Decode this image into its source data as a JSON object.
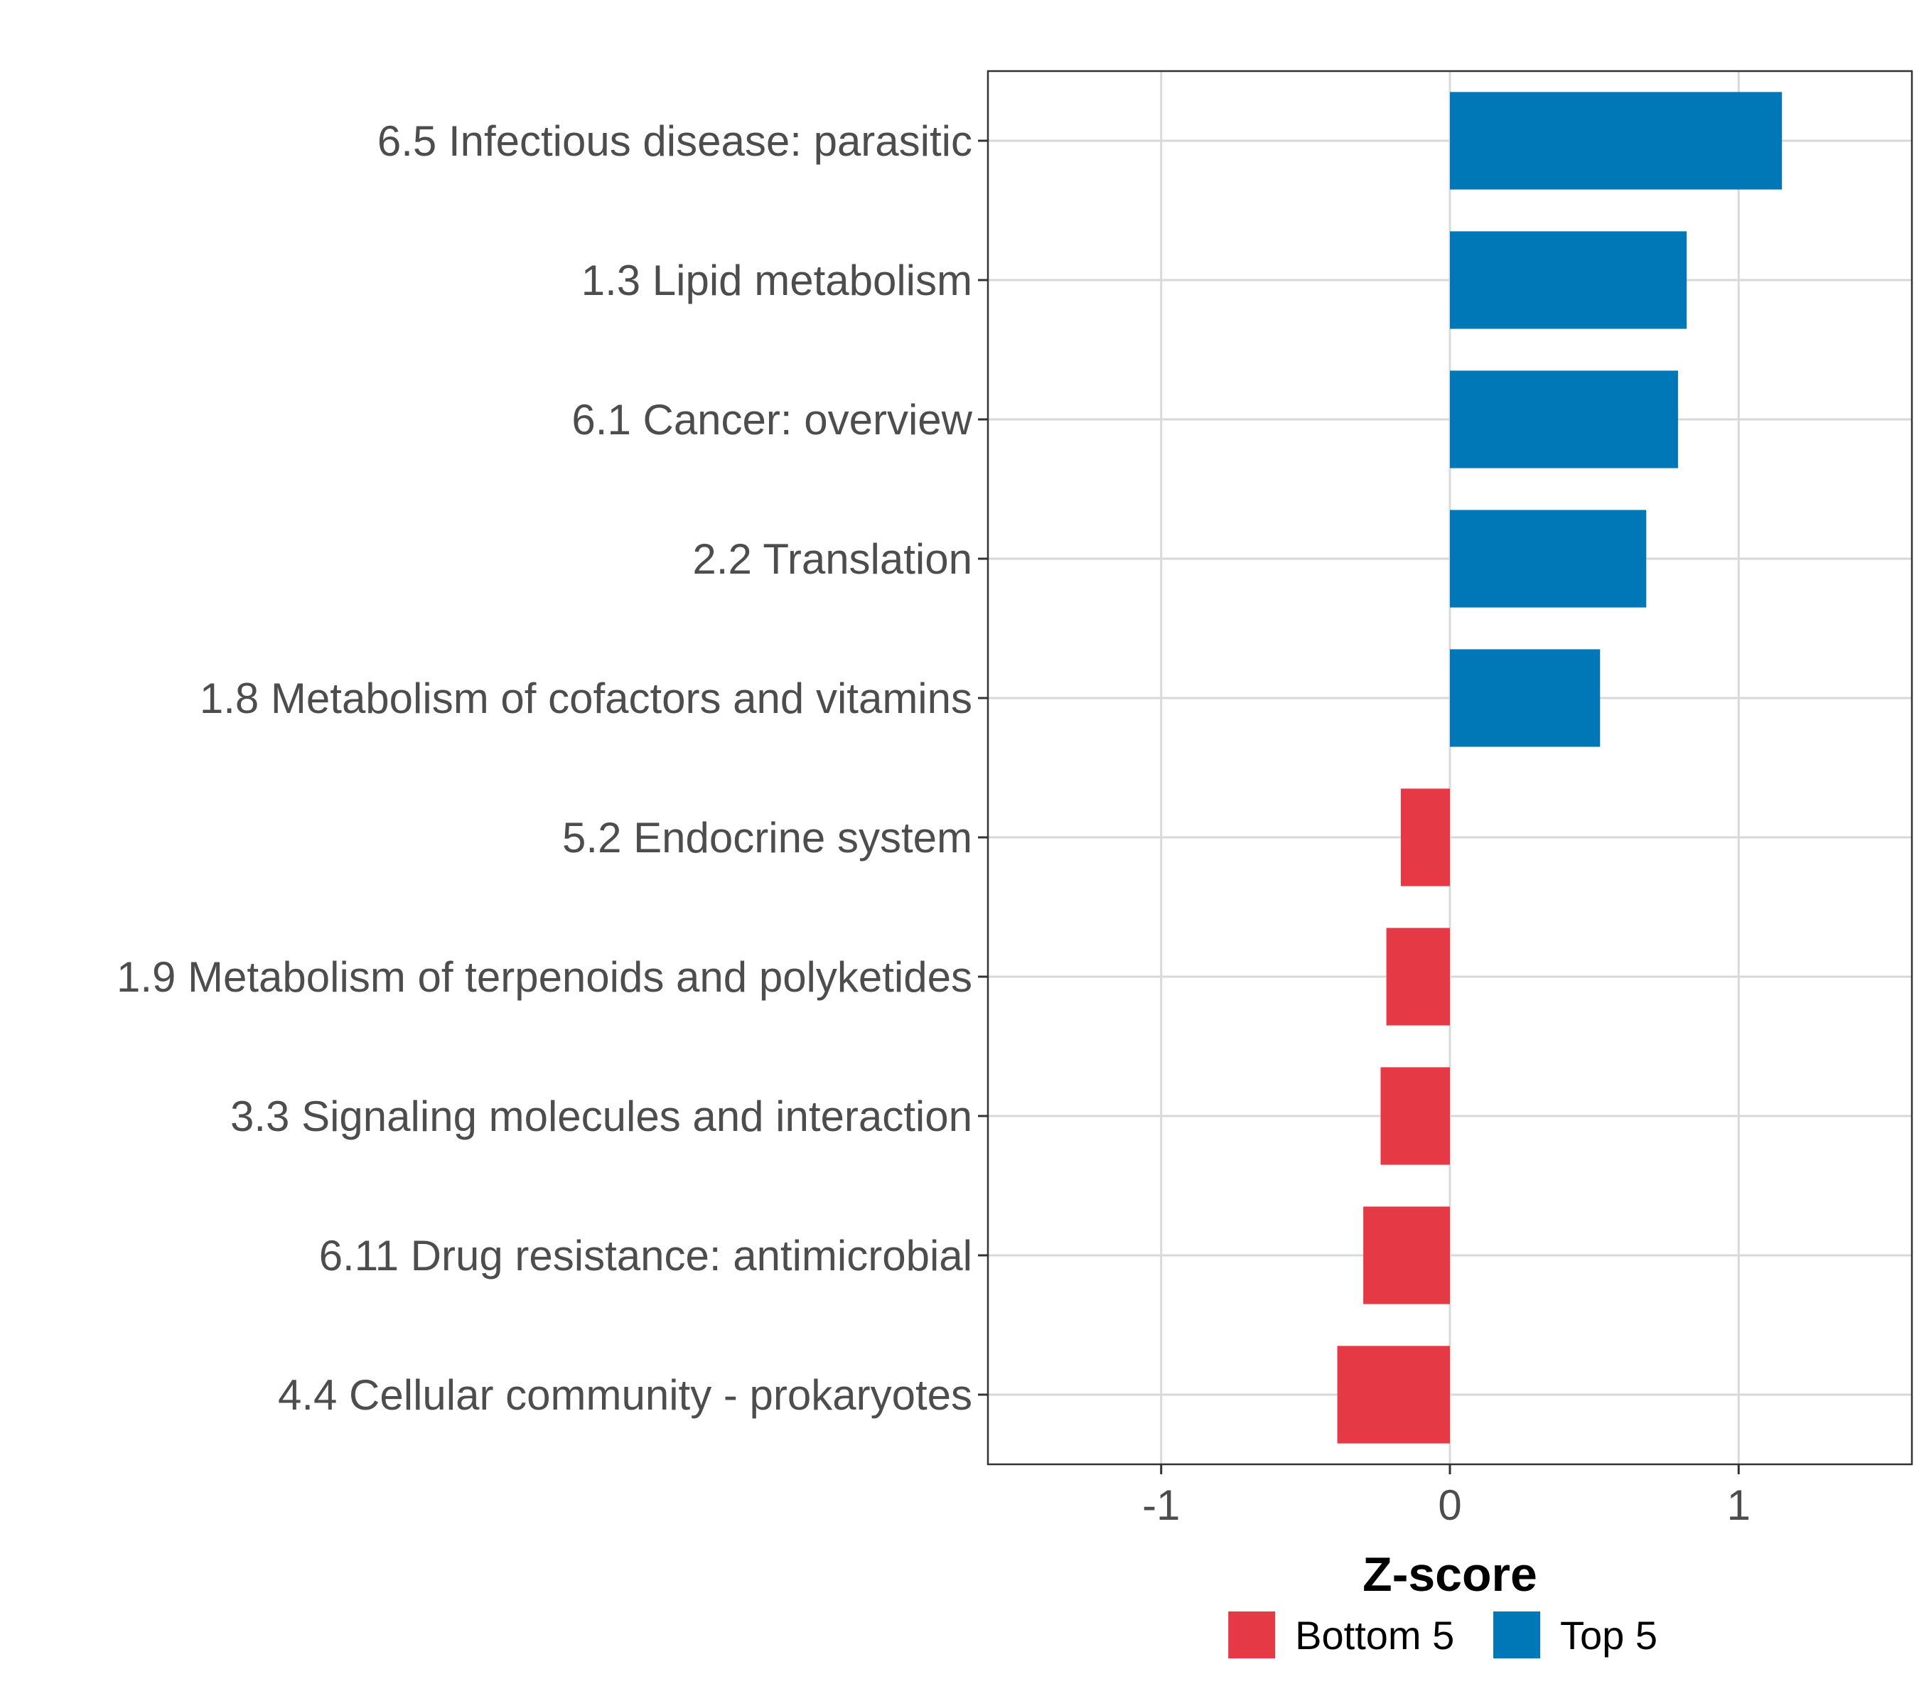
{
  "chart_data": {
    "type": "bar",
    "orientation": "horizontal",
    "title": "",
    "xlabel": "Z-score",
    "ylabel": "",
    "xlim": [
      -1.6,
      1.6
    ],
    "xticks": [
      -1,
      0,
      1
    ],
    "xtick_labels": [
      "-1",
      "0",
      "1"
    ],
    "grid": true,
    "categories": [
      "6.5 Infectious disease: parasitic",
      "1.3 Lipid metabolism",
      "6.1 Cancer: overview",
      "2.2 Translation",
      "1.8 Metabolism of cofactors and vitamins",
      "5.2 Endocrine system",
      "1.9 Metabolism of terpenoids and polyketides",
      "3.3 Signaling molecules and interaction",
      "6.11 Drug resistance: antimicrobial",
      "4.4 Cellular community - prokaryotes"
    ],
    "values": [
      1.15,
      0.82,
      0.79,
      0.68,
      0.52,
      -0.17,
      -0.22,
      -0.24,
      -0.3,
      -0.39
    ],
    "groups": [
      "Top 5",
      "Top 5",
      "Top 5",
      "Top 5",
      "Top 5",
      "Bottom 5",
      "Bottom 5",
      "Bottom 5",
      "Bottom 5",
      "Bottom 5"
    ],
    "legend": {
      "position": "bottom",
      "entries": [
        {
          "label": "Bottom 5",
          "color": "#e63946"
        },
        {
          "label": "Top 5",
          "color": "#0077b6"
        }
      ]
    }
  }
}
